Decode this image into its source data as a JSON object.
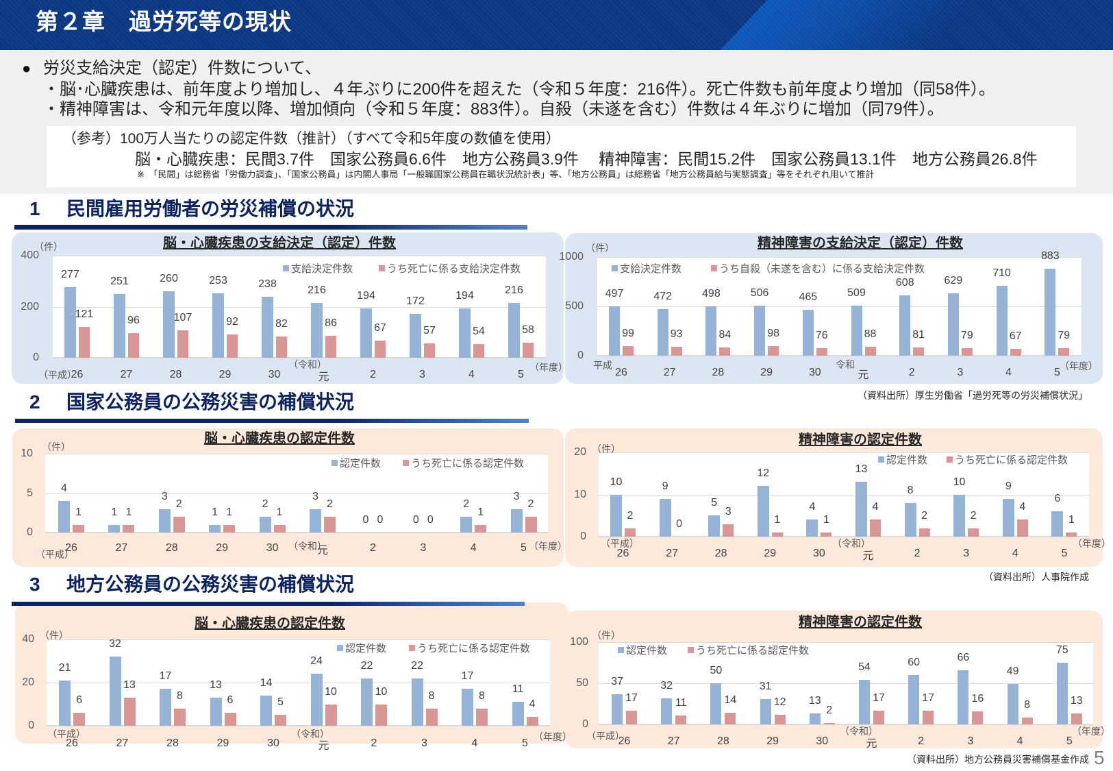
{
  "header": {
    "title": "第２章　過労死等の現状"
  },
  "summary": {
    "bullet": "●",
    "lines": [
      "労災支給決定（認定）件数について、",
      "・脳･心臓疾患は、前年度より増加し、４年ぶりに200件を超えた（令和５年度：216件）。死亡件数も前年度より増加（同58件）。",
      "・精神障害は、令和元年度以降、増加傾向（令和５年度：883件）。自殺（未遂を含む）件数は４年ぶりに増加（同79件）。"
    ]
  },
  "reference": {
    "heading": "（参考）100万人当たりの認定件数（推計）（すべて令和5年度の数値を使用）",
    "values": "脳・心臓疾患：民間3.7件　国家公務員6.6件　地方公務員3.9件　 精神障害：民間15.2件　国家公務員13.1件　地方公務員26.8件",
    "note": "※　「民間」は総務省「労働力調査」、「国家公務員」は内閣人事局「一般職国家公務員在職状況統計表」等、「地方公務員」は総務省「地方公務員給与実態調査」等をそれぞれ用いて推計"
  },
  "sections": [
    {
      "number": "1",
      "title": "民間雇用労働者の労災補償の状況",
      "source": "（資料出所）厚生労働省「過労死等の労災補償状況」"
    },
    {
      "number": "2",
      "title": "国家公務員の公務災害の補償状況",
      "source": "（資料出所）人事院作成"
    },
    {
      "number": "3",
      "title": "地方公務員の公務災害の補償状況",
      "source": "（資料出所）地方公務員災害補償基金作成"
    }
  ],
  "page_number": "5",
  "colors": {
    "series_main": "#95B3D7",
    "series_sub": "#D99694",
    "panel_blue": "#DCE6F2",
    "panel_peach": "#FCE9DC",
    "heading": "#0D2461",
    "header_bg": "#0B3682"
  },
  "chart_data": [
    {
      "type": "bar",
      "title": "脳・心臓疾患の支給決定（認定）件数",
      "unit": "（件）",
      "categories": [
        "26",
        "27",
        "28",
        "29",
        "30",
        "元",
        "2",
        "3",
        "4",
        "5"
      ],
      "era_labels": {
        "heisei": "（平成）",
        "reiwa": "（令和）"
      },
      "xlabel": "（年度）",
      "ylabel": "（件）",
      "series": [
        {
          "name": "支給決定件数",
          "values": [
            277,
            251,
            260,
            253,
            238,
            216,
            194,
            172,
            194,
            216
          ]
        },
        {
          "name": "うち死亡に係る支給決定件数",
          "values": [
            121,
            96,
            107,
            92,
            82,
            86,
            67,
            57,
            54,
            58
          ]
        }
      ],
      "yticks": [
        0,
        200,
        400
      ],
      "ylim": [
        0,
        400
      ],
      "grid": true,
      "legend_position": "top-right"
    },
    {
      "type": "bar",
      "title": "精神障害の支給決定（認定）件数",
      "unit": "（件）",
      "categories": [
        "26",
        "27",
        "28",
        "29",
        "30",
        "元",
        "2",
        "3",
        "4",
        "5"
      ],
      "era_labels": {
        "heisei": "平成",
        "reiwa": "令和"
      },
      "xlabel": "（年度）",
      "ylabel": "（件）",
      "series": [
        {
          "name": "支給決定件数",
          "values": [
            497,
            472,
            498,
            506,
            465,
            509,
            608,
            629,
            710,
            883
          ]
        },
        {
          "name": "うち自殺（未遂を含む）に係る支給決定件数",
          "values": [
            99,
            93,
            84,
            98,
            76,
            88,
            81,
            79,
            67,
            79
          ]
        }
      ],
      "yticks": [
        0,
        500,
        1000
      ],
      "ylim": [
        0,
        1000
      ],
      "grid": true,
      "legend_position": "top-left"
    },
    {
      "type": "bar",
      "title": "脳・心臓疾患の認定件数",
      "unit": "（件）",
      "categories": [
        "26",
        "27",
        "28",
        "29",
        "30",
        "元",
        "2",
        "3",
        "4",
        "5"
      ],
      "era_labels": {
        "heisei": "（平成）",
        "reiwa": "（令和）"
      },
      "xlabel": "（年度）",
      "ylabel": "（件）",
      "series": [
        {
          "name": "認定件数",
          "values": [
            4,
            1,
            3,
            1,
            2,
            3,
            0,
            0,
            2,
            3
          ]
        },
        {
          "name": "うち死亡に係る認定件数",
          "values": [
            1,
            1,
            2,
            1,
            1,
            2,
            0,
            0,
            1,
            2
          ]
        }
      ],
      "yticks": [
        0,
        5,
        10
      ],
      "ylim": [
        0,
        10
      ],
      "grid": true,
      "legend_position": "top-right"
    },
    {
      "type": "bar",
      "title": "精神障害の認定件数",
      "unit": "（件）",
      "categories": [
        "26",
        "27",
        "28",
        "29",
        "30",
        "元",
        "2",
        "3",
        "4",
        "5"
      ],
      "era_labels": {
        "heisei": "（平成）",
        "reiwa": "（令和）"
      },
      "xlabel": "（年度）",
      "ylabel": "（件）",
      "series": [
        {
          "name": "認定件数",
          "values": [
            10,
            9,
            5,
            12,
            4,
            13,
            8,
            10,
            9,
            6
          ]
        },
        {
          "name": "うち死亡に係る認定件数",
          "values": [
            2,
            0,
            3,
            1,
            1,
            4,
            2,
            2,
            4,
            1
          ]
        }
      ],
      "yticks": [
        0,
        10,
        20
      ],
      "ylim": [
        0,
        20
      ],
      "grid": true,
      "legend_position": "top-right"
    },
    {
      "type": "bar",
      "title": "脳・心臓疾患の認定件数",
      "unit": "（件）",
      "categories": [
        "26",
        "27",
        "28",
        "29",
        "30",
        "元",
        "2",
        "3",
        "4",
        "5"
      ],
      "era_labels": {
        "heisei": "（平成）",
        "reiwa": "（令和）"
      },
      "xlabel": "（年度）",
      "ylabel": "（件）",
      "series": [
        {
          "name": "認定件数",
          "values": [
            21,
            32,
            17,
            13,
            14,
            24,
            22,
            22,
            17,
            11
          ]
        },
        {
          "name": "うち死亡に係る認定件数",
          "values": [
            6,
            13,
            8,
            6,
            5,
            10,
            10,
            8,
            8,
            4
          ]
        }
      ],
      "yticks": [
        0,
        20,
        40
      ],
      "ylim": [
        0,
        40
      ],
      "grid": true,
      "legend_position": "top-right"
    },
    {
      "type": "bar",
      "title": "精神障害の認定件数",
      "unit": "（件）",
      "categories": [
        "26",
        "27",
        "28",
        "29",
        "30",
        "元",
        "2",
        "3",
        "4",
        "5"
      ],
      "era_labels": {
        "heisei": "（平成）",
        "reiwa": "（令和）"
      },
      "xlabel": "（年度）",
      "ylabel": "（件）",
      "series": [
        {
          "name": "認定件数",
          "values": [
            37,
            32,
            50,
            31,
            13,
            54,
            60,
            66,
            49,
            75
          ]
        },
        {
          "name": "うち死亡に係る認定件数",
          "values": [
            17,
            11,
            14,
            12,
            2,
            17,
            17,
            16,
            8,
            13
          ]
        }
      ],
      "yticks": [
        0,
        50,
        100
      ],
      "ylim": [
        0,
        100
      ],
      "grid": true,
      "legend_position": "top-left"
    }
  ]
}
